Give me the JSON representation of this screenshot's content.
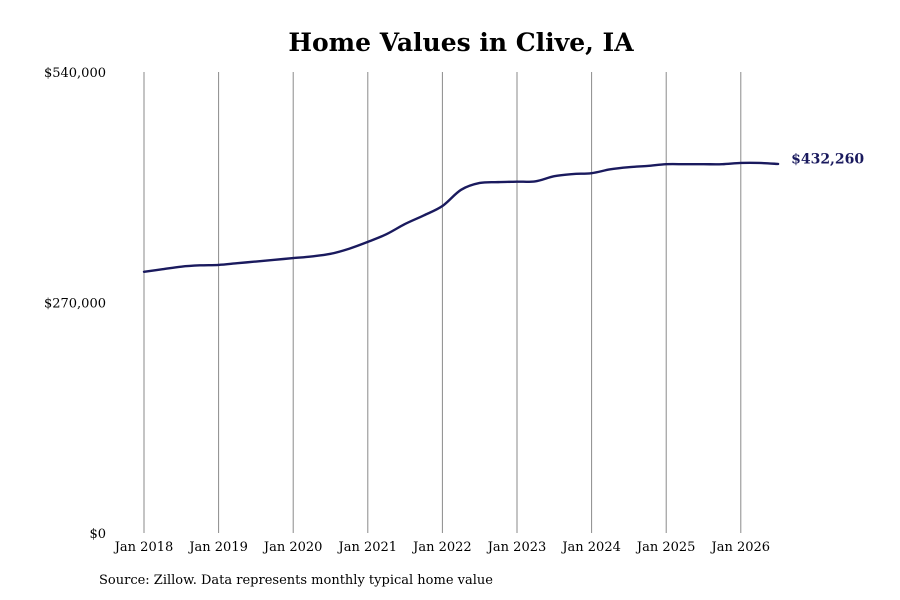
{
  "chart_data": {
    "type": "line",
    "title": "Home Values in Clive, IA",
    "xlabel": "",
    "ylabel": "",
    "ylim": [
      0,
      540000
    ],
    "y_ticks": [
      {
        "value": 0,
        "label": "$0"
      },
      {
        "value": 270000,
        "label": "$270,000"
      },
      {
        "value": 540000,
        "label": "$540,000"
      }
    ],
    "x_ticks": [
      {
        "value": 2018,
        "label": "Jan 2018"
      },
      {
        "value": 2019,
        "label": "Jan 2019"
      },
      {
        "value": 2020,
        "label": "Jan 2020"
      },
      {
        "value": 2021,
        "label": "Jan 2021"
      },
      {
        "value": 2022,
        "label": "Jan 2022"
      },
      {
        "value": 2023,
        "label": "Jan 2023"
      },
      {
        "value": 2024,
        "label": "Jan 2024"
      },
      {
        "value": 2025,
        "label": "Jan 2025"
      },
      {
        "value": 2026,
        "label": "Jan 2026"
      }
    ],
    "grid": "vertical",
    "series_color": "#1a1a5e",
    "end_label": "$432,260",
    "series": [
      {
        "values": [
          [
            2018.0,
            306000
          ],
          [
            2018.25,
            309000
          ],
          [
            2018.5,
            312000
          ],
          [
            2018.75,
            313500
          ],
          [
            2019.0,
            314000
          ],
          [
            2019.25,
            316000
          ],
          [
            2019.5,
            318000
          ],
          [
            2019.75,
            320000
          ],
          [
            2020.0,
            322000
          ],
          [
            2020.25,
            324000
          ],
          [
            2020.5,
            327000
          ],
          [
            2020.75,
            333000
          ],
          [
            2021.0,
            341000
          ],
          [
            2021.25,
            350000
          ],
          [
            2021.5,
            362000
          ],
          [
            2021.75,
            372000
          ],
          [
            2022.0,
            383000
          ],
          [
            2022.25,
            402000
          ],
          [
            2022.5,
            410000
          ],
          [
            2022.75,
            411000
          ],
          [
            2023.0,
            411500
          ],
          [
            2023.25,
            412000
          ],
          [
            2023.5,
            418000
          ],
          [
            2023.75,
            420500
          ],
          [
            2024.0,
            421500
          ],
          [
            2024.25,
            426000
          ],
          [
            2024.5,
            428500
          ],
          [
            2024.75,
            430000
          ],
          [
            2025.0,
            432000
          ],
          [
            2025.25,
            432000
          ],
          [
            2025.5,
            432000
          ],
          [
            2025.75,
            432000
          ],
          [
            2026.0,
            433500
          ],
          [
            2026.25,
            433500
          ],
          [
            2026.5,
            432260
          ]
        ]
      }
    ]
  },
  "footer": {
    "source": "Source: Zillow. Data represents monthly typical home value"
  }
}
